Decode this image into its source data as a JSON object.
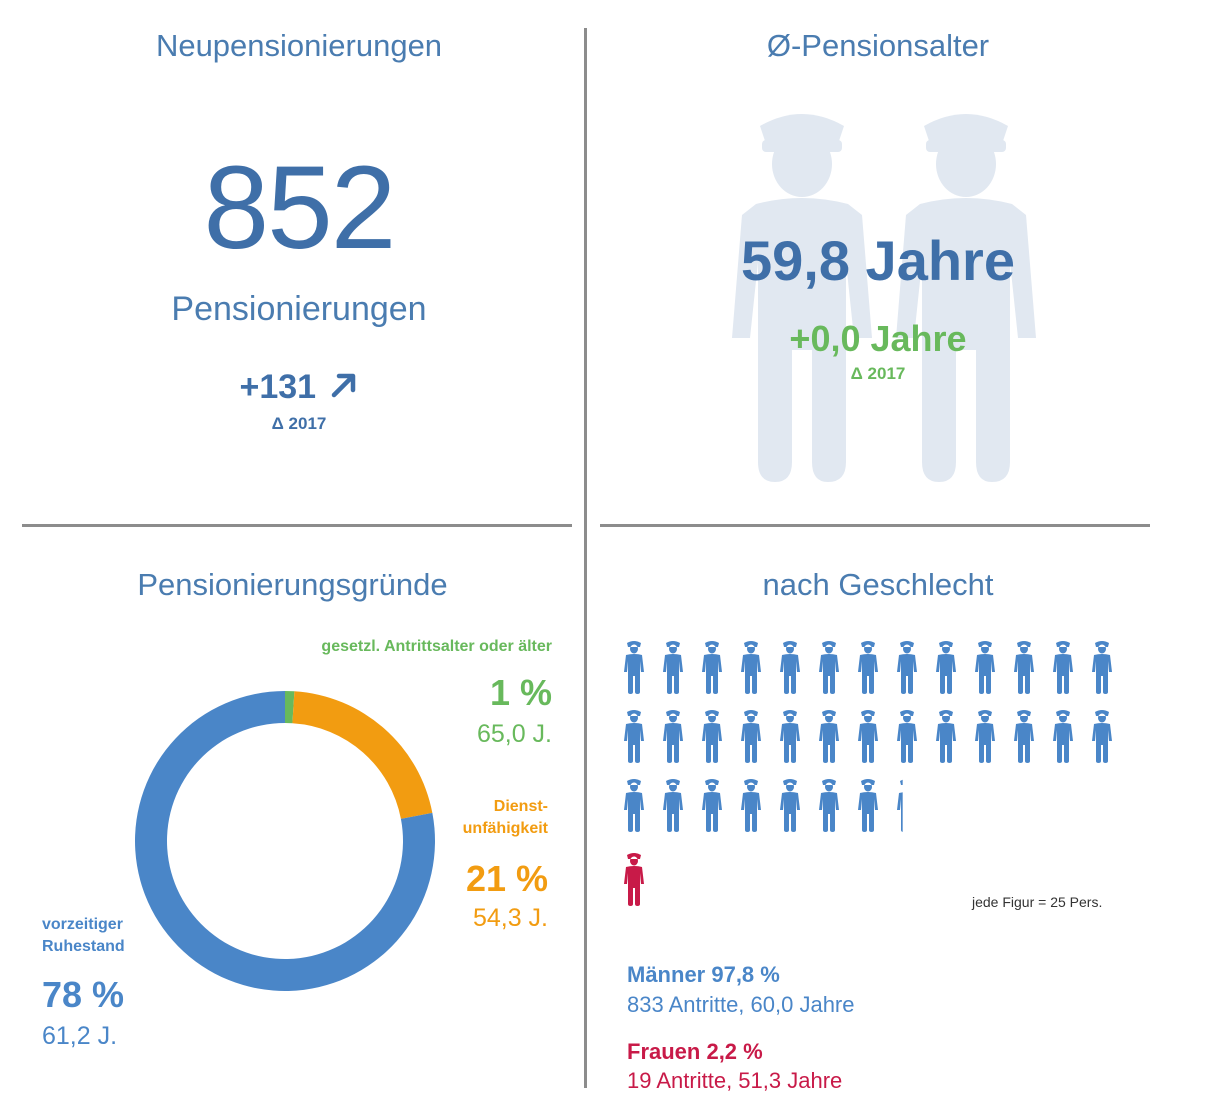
{
  "panels": {
    "neu": {
      "title": "Neupensionierungen",
      "value": "852",
      "unit": "Pensionierungen",
      "delta": "+131",
      "delta_year": "Δ 2017",
      "arrow_icon": "arrow-up-right-icon"
    },
    "alter": {
      "title": "Ø-Pensionsalter",
      "value": "59,8 Jahre",
      "delta": "+0,0 Jahre",
      "delta_year": "Δ 2017",
      "bg_icon": "police-officers-icon"
    },
    "gruende": {
      "title": "Pensionierungsgründe",
      "segments": [
        {
          "label": "gesetzl. Antrittsalter oder älter",
          "pct": "1 %",
          "age": "65,0 J."
        },
        {
          "label_1": "Dienst-",
          "label_2": "unfähigkeit",
          "pct": "21 %",
          "age": "54,3 J."
        },
        {
          "label_1": "vorzeitiger",
          "label_2": "Ruhestand",
          "pct": "78 %",
          "age": "61,2 J."
        }
      ]
    },
    "geschlecht": {
      "title": "nach Geschlecht",
      "note": "jede Figur = 25 Pers.",
      "men_heading": "Männer 97,8 %",
      "men_detail": "833 Antritte, 60,0 Jahre",
      "women_heading": "Frauen 2,2 %",
      "women_detail": "19 Antritte, 51,3 Jahre",
      "figure_icon": "police-figure-icon"
    }
  },
  "chart_data": [
    {
      "type": "pie",
      "title": "Pensionierungsgründe",
      "categories": [
        "gesetzl. Antrittsalter oder älter",
        "Dienstunfähigkeit",
        "vorzeitiger Ruhestand"
      ],
      "values": [
        1,
        21,
        78
      ],
      "ages": [
        65.0,
        54.3,
        61.2
      ],
      "donut": true
    },
    {
      "type": "bar",
      "title": "nach Geschlecht",
      "categories": [
        "Männer",
        "Frauen"
      ],
      "values": [
        833,
        19
      ],
      "percent": [
        97.8,
        2.2
      ],
      "avg_age": [
        60.0,
        51.3
      ],
      "unit_per_figure": 25
    }
  ],
  "colors": {
    "blue": "#4a86c8",
    "dark_blue": "#3f6fa8",
    "orange": "#f29c11",
    "green": "#68b95c",
    "red": "#c81a48",
    "silhouette": "#e1e8f1"
  }
}
